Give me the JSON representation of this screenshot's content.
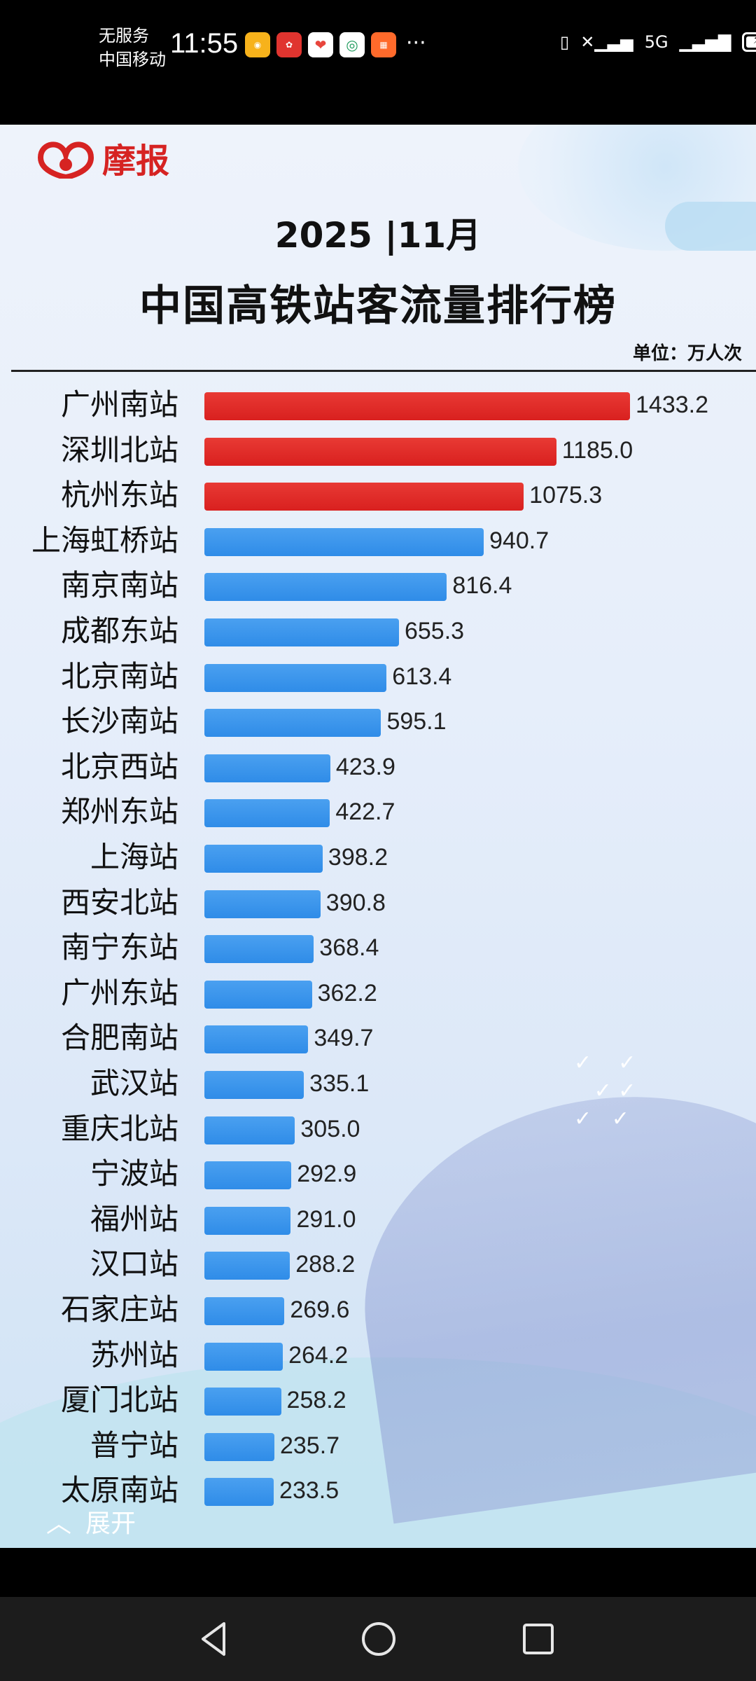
{
  "status_bar": {
    "carrier_line1": "无服务",
    "carrier_line2": "中国移动",
    "time": "11:55",
    "more": "···",
    "network": "5G",
    "app_icons": [
      "weibo-icon",
      "huawei-icon",
      "xiaohongshu-icon",
      "china-mobile-icon",
      "calendar-app-icon"
    ]
  },
  "header": {
    "logo_text": "摩报",
    "title_line1": "2025 |11月",
    "title_line2": "中国高铁站客流量排行榜",
    "unit": "单位：万人次"
  },
  "chart_data": {
    "type": "bar",
    "orientation": "horizontal",
    "title": "中国高铁站客流量排行榜",
    "subtitle": "2025 |11月",
    "unit": "单位：万人次",
    "categories": [
      "广州南站",
      "深圳北站",
      "杭州东站",
      "上海虹桥站",
      "南京南站",
      "成都东站",
      "北京南站",
      "长沙南站",
      "北京西站",
      "郑州东站",
      "上海站",
      "西安北站",
      "南宁东站",
      "广州东站",
      "合肥南站",
      "武汉站",
      "重庆北站",
      "宁波站",
      "福州站",
      "汉口站",
      "石家庄站",
      "苏州站",
      "厦门北站",
      "普宁站",
      "太原南站"
    ],
    "values": [
      1433.2,
      1185.0,
      1075.3,
      940.7,
      816.4,
      655.3,
      613.4,
      595.1,
      423.9,
      422.7,
      398.2,
      390.8,
      368.4,
      362.2,
      349.7,
      335.1,
      305.0,
      292.9,
      291.0,
      288.2,
      269.6,
      264.2,
      258.2,
      235.7,
      233.5
    ],
    "value_labels": [
      "1433.2",
      "1185.0",
      "1075.3",
      "940.7",
      "816.4",
      "655.3",
      "613.4",
      "595.1",
      "423.9",
      "422.7",
      "398.2",
      "390.8",
      "368.4",
      "362.2",
      "349.7",
      "335.1",
      "305.0",
      "292.9",
      "291.0",
      "288.2",
      "269.6",
      "264.2",
      "258.2",
      "235.7",
      "233.5"
    ],
    "highlight_top_n": 3,
    "colors": {
      "highlight": "#d9201f",
      "normal": "#2f8ce8"
    }
  },
  "footer": {
    "expand_label": "展开"
  }
}
